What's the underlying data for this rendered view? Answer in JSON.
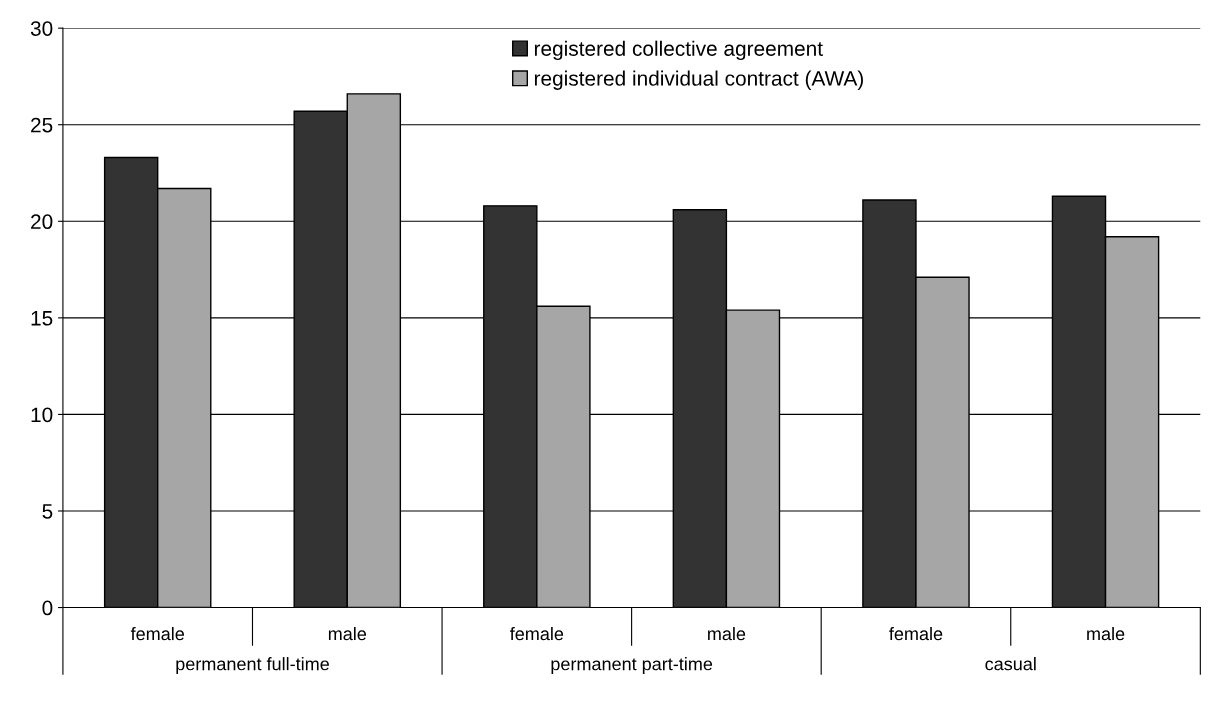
{
  "chart_data": {
    "type": "bar",
    "categories": [
      "female",
      "male",
      "female",
      "male",
      "female",
      "male"
    ],
    "series": [
      {
        "name": "registered collective agreement",
        "color": "#333333",
        "values": [
          23.3,
          25.7,
          20.8,
          20.6,
          21.1,
          21.3
        ]
      },
      {
        "name": "registered individual contract (AWA)",
        "color": "#a6a6a6",
        "values": [
          21.7,
          26.6,
          15.6,
          15.4,
          17.1,
          19.2
        ]
      }
    ],
    "annotations": [
      "permanent full-time",
      "permanent part-time",
      "casual"
    ],
    "ylim": [
      0,
      30
    ],
    "yticks": [
      0,
      5,
      10,
      15,
      20,
      25,
      30
    ],
    "grid": "y",
    "legend": "top"
  }
}
